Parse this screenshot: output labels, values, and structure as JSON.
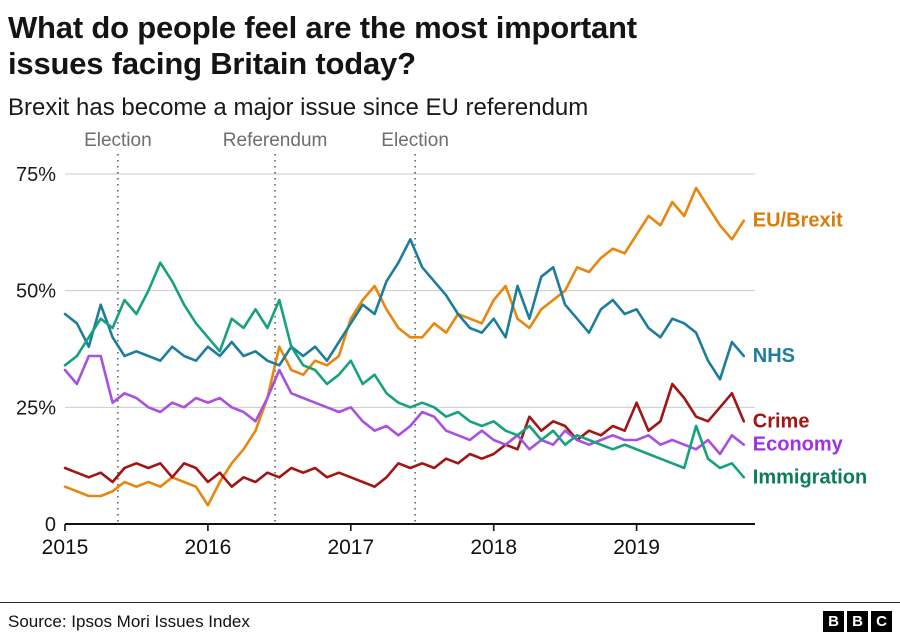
{
  "header": {
    "title_lines": [
      "What do people feel are the most important",
      "issues facing Britain today?"
    ],
    "subtitle": "Brexit has become a major issue since EU referendum"
  },
  "footer": {
    "source": "Source: Ipsos Mori Issues Index",
    "logo_letters": [
      "B",
      "B",
      "C"
    ]
  },
  "chart_data": {
    "type": "line",
    "title": "What do people feel are the most important issues facing Britain today?",
    "subtitle": "Brexit has become a major issue since EU referendum",
    "x_unit": "year_fraction_monthly",
    "x0": 2015.0,
    "dx": 0.0833333,
    "x_ticks": [
      2015,
      2016,
      2017,
      2018,
      2019
    ],
    "y_ticks": [
      {
        "value": 0,
        "label": "0"
      },
      {
        "value": 25,
        "label": "25%"
      },
      {
        "value": 50,
        "label": "50%"
      },
      {
        "value": 75,
        "label": "75%"
      }
    ],
    "ylim": [
      0,
      78
    ],
    "grid": true,
    "legend_position": "right-of-lines",
    "events": [
      {
        "x": 2015.37,
        "label": "Election"
      },
      {
        "x": 2016.47,
        "label": "Referendum"
      },
      {
        "x": 2017.45,
        "label": "Election"
      }
    ],
    "series": [
      {
        "name": "EU/Brexit",
        "color": "#e8860d",
        "label_color": "#d87d0a",
        "values": [
          8,
          7,
          6,
          6,
          7,
          9,
          8,
          9,
          8,
          10,
          9,
          8,
          4,
          9,
          13,
          16,
          20,
          27,
          38,
          33,
          32,
          35,
          34,
          36,
          44,
          48,
          51,
          46,
          42,
          40,
          40,
          43,
          41,
          45,
          44,
          43,
          48,
          51,
          44,
          42,
          46,
          48,
          50,
          55,
          54,
          57,
          59,
          58,
          62,
          66,
          64,
          69,
          66,
          72,
          68,
          64,
          61,
          65
        ]
      },
      {
        "name": "NHS",
        "color": "#1d7d9c",
        "label_color": "#1d7d9c",
        "values": [
          45,
          43,
          38,
          47,
          40,
          36,
          37,
          36,
          35,
          38,
          36,
          35,
          38,
          36,
          39,
          36,
          37,
          35,
          34,
          38,
          36,
          38,
          35,
          39,
          43,
          47,
          45,
          52,
          56,
          61,
          55,
          52,
          49,
          45,
          42,
          41,
          44,
          40,
          51,
          44,
          53,
          55,
          47,
          44,
          41,
          46,
          48,
          45,
          46,
          42,
          40,
          44,
          43,
          41,
          35,
          31,
          39,
          36
        ]
      },
      {
        "name": "Crime",
        "color": "#a11515",
        "label_color": "#a11515",
        "values": [
          12,
          11,
          10,
          11,
          9,
          12,
          13,
          12,
          13,
          10,
          13,
          12,
          9,
          11,
          8,
          10,
          9,
          11,
          10,
          12,
          11,
          12,
          10,
          11,
          10,
          9,
          8,
          10,
          13,
          12,
          13,
          12,
          14,
          13,
          15,
          14,
          15,
          17,
          16,
          23,
          20,
          22,
          21,
          18,
          20,
          19,
          21,
          20,
          26,
          20,
          22,
          30,
          27,
          23,
          22,
          25,
          28,
          22
        ]
      },
      {
        "name": "Economy",
        "color": "#a851e0",
        "label_color": "#a132e0",
        "values": [
          33,
          30,
          36,
          36,
          26,
          28,
          27,
          25,
          24,
          26,
          25,
          27,
          26,
          27,
          25,
          24,
          22,
          27,
          33,
          28,
          27,
          26,
          25,
          24,
          25,
          22,
          20,
          21,
          19,
          21,
          24,
          23,
          20,
          19,
          18,
          20,
          18,
          17,
          19,
          16,
          18,
          17,
          20,
          18,
          17,
          18,
          19,
          18,
          18,
          19,
          17,
          18,
          17,
          16,
          18,
          15,
          19,
          17
        ]
      },
      {
        "name": "Immigration",
        "color": "#17a17e",
        "label_color": "#0a7d58",
        "values": [
          34,
          36,
          40,
          44,
          42,
          48,
          45,
          50,
          56,
          52,
          47,
          43,
          40,
          37,
          44,
          42,
          46,
          42,
          48,
          38,
          34,
          33,
          30,
          32,
          35,
          30,
          32,
          28,
          26,
          25,
          26,
          25,
          23,
          24,
          22,
          21,
          22,
          20,
          19,
          21,
          18,
          20,
          17,
          19,
          18,
          17,
          16,
          17,
          16,
          15,
          14,
          13,
          12,
          21,
          14,
          12,
          13,
          10
        ]
      }
    ]
  }
}
